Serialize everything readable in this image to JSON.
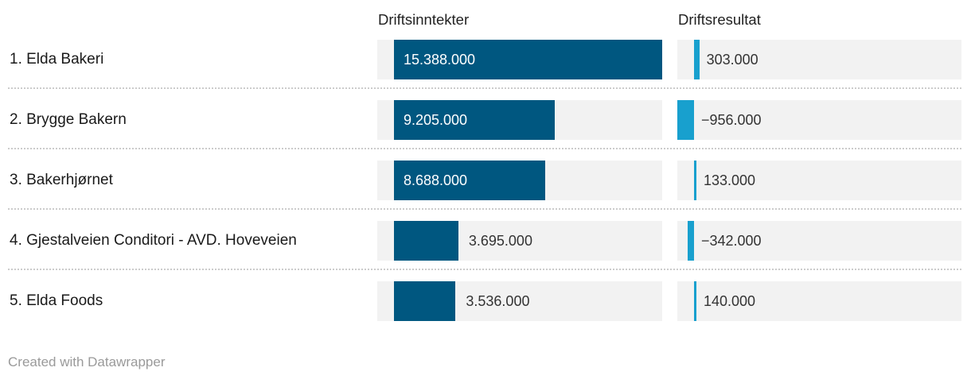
{
  "header": {
    "revenue": "Driftsinntekter",
    "result": "Driftsresultat"
  },
  "footer": {
    "credit": "Created with Datawrapper"
  },
  "colors": {
    "revenue_bar": "#005780",
    "result_bar": "#18a0ce",
    "track": "#f2f2f2",
    "label_text": "#1a1a1a",
    "value_text_dark": "#333333",
    "value_text_light": "#ffffff",
    "separator": "#cccccc",
    "credit_text": "#9a9a9a"
  },
  "chart_data": {
    "type": "bar",
    "orientation": "horizontal",
    "title": "",
    "categories": [
      "1. Elda Bakeri",
      "2. Brygge Bakern",
      "3. Bakerhjørnet",
      "4. Gjestalveien Conditori - AVD. Hoveveien",
      "5. Elda Foods"
    ],
    "series": [
      {
        "name": "Driftsinntekter",
        "values": [
          15388000,
          9205000,
          8688000,
          3695000,
          3536000
        ],
        "labels": [
          "15.388.000",
          "9.205.000",
          "8.688.000",
          "3.695.000",
          "3.536.000"
        ]
      },
      {
        "name": "Driftsresultat",
        "values": [
          303000,
          -956000,
          133000,
          -342000,
          140000
        ],
        "labels": [
          "303.000",
          "−956.000",
          "133.000",
          "−342.000",
          "140.000"
        ]
      }
    ],
    "xlim": [
      -956000,
      15388000
    ],
    "grid": false,
    "legend_position": "column-headers",
    "annotations": []
  },
  "layout_note": "table with inline bar columns"
}
